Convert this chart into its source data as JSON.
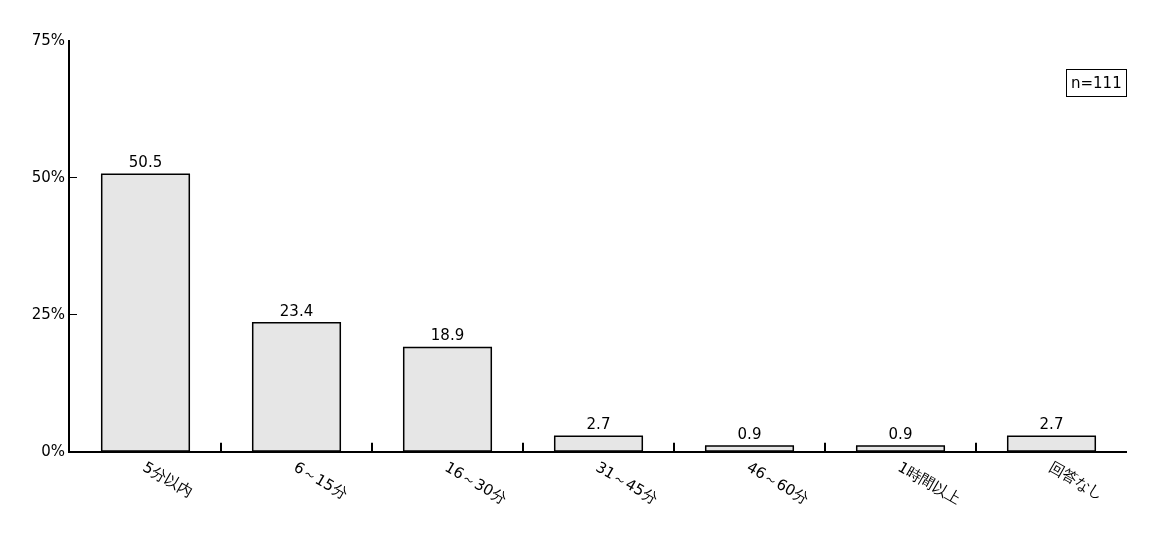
{
  "chart_data": {
    "type": "bar",
    "categories": [
      "5分以内",
      "6～15分",
      "16～30分",
      "31～45分",
      "46～60分",
      "1時間以上",
      "回答なし"
    ],
    "values": [
      50.5,
      23.4,
      18.9,
      2.7,
      0.9,
      0.9,
      2.7
    ],
    "color": "#e6e6e6",
    "ylim": [
      0,
      75
    ],
    "yticks": [
      {
        "value": 0,
        "label": "0%"
      },
      {
        "value": 25,
        "label": "25%"
      },
      {
        "value": 50,
        "label": "50%"
      },
      {
        "value": 75,
        "label": "75%"
      }
    ],
    "data_labels": true,
    "annotations": [
      "n=111"
    ]
  }
}
